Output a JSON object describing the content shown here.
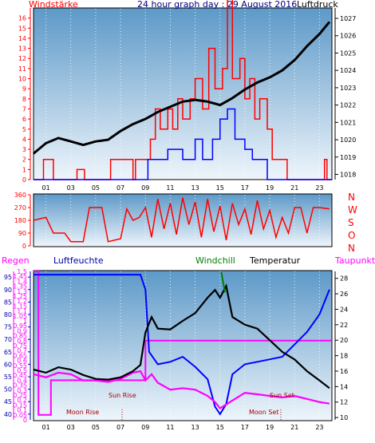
{
  "title": "24 hour graph day : 29 August 2016",
  "colors": {
    "bg": "#ffffff",
    "plot_top": "#5d99c8",
    "plot_bottom": "#eef5fb",
    "red": "#ff0000",
    "blue": "#0000ff",
    "black": "#000000",
    "magenta": "#ff00ff",
    "green": "#008000",
    "darkred": "#aa0000"
  },
  "hours_labels": [
    "01",
    "03",
    "05",
    "07",
    "09",
    "11",
    "13",
    "15",
    "17",
    "19",
    "21",
    "23"
  ],
  "chart_data": [
    {
      "type": "line",
      "name": "wind-pressure",
      "left_label": "Windstärke",
      "right_label": "Luftdruck",
      "left_ticks": [
        "0",
        "1",
        "2",
        "3",
        "4",
        "5",
        "6",
        "7",
        "8",
        "9",
        "10",
        "11",
        "12",
        "13",
        "14",
        "15",
        "16"
      ],
      "right_ticks": [
        "1018",
        "1019",
        "1020",
        "1021",
        "1022",
        "1023",
        "1024",
        "1025",
        "1026",
        "1027"
      ],
      "left_range": [
        0,
        17
      ],
      "right_range": [
        1017.7,
        1027.6
      ],
      "x_range": [
        0,
        24
      ],
      "pressure": [
        [
          0,
          1019.2
        ],
        [
          1,
          1019.8
        ],
        [
          2,
          1020.1
        ],
        [
          3,
          1019.9
        ],
        [
          4,
          1019.7
        ],
        [
          5,
          1019.9
        ],
        [
          6,
          1020.0
        ],
        [
          7,
          1020.5
        ],
        [
          8,
          1020.9
        ],
        [
          9,
          1021.2
        ],
        [
          10,
          1021.6
        ],
        [
          11,
          1021.9
        ],
        [
          12,
          1022.2
        ],
        [
          13,
          1022.3
        ],
        [
          14,
          1022.2
        ],
        [
          15,
          1022.0
        ],
        [
          16,
          1022.4
        ],
        [
          17,
          1022.9
        ],
        [
          18,
          1023.3
        ],
        [
          19,
          1023.6
        ],
        [
          20,
          1024.0
        ],
        [
          21,
          1024.6
        ],
        [
          22,
          1025.4
        ],
        [
          23,
          1026.1
        ],
        [
          23.8,
          1026.8
        ]
      ],
      "wind_envelope": [
        [
          0,
          0
        ],
        [
          0.6,
          0
        ],
        [
          0.8,
          2
        ],
        [
          1.4,
          2
        ],
        [
          1.6,
          0
        ],
        [
          3.3,
          0
        ],
        [
          3.5,
          1
        ],
        [
          3.9,
          1
        ],
        [
          4.1,
          0
        ],
        [
          6.0,
          0
        ],
        [
          6.2,
          2
        ],
        [
          7.8,
          2
        ],
        [
          8.0,
          0
        ],
        [
          8.2,
          2
        ],
        [
          9.2,
          2
        ],
        [
          9.4,
          4
        ],
        [
          9.8,
          7
        ],
        [
          10.2,
          5
        ],
        [
          10.8,
          7
        ],
        [
          11.2,
          5
        ],
        [
          11.6,
          8
        ],
        [
          12.0,
          6
        ],
        [
          12.6,
          8
        ],
        [
          13.0,
          10
        ],
        [
          13.6,
          7
        ],
        [
          14.1,
          13
        ],
        [
          14.6,
          9
        ],
        [
          15.2,
          11
        ],
        [
          15.6,
          18
        ],
        [
          16.0,
          10
        ],
        [
          16.6,
          12
        ],
        [
          17.0,
          8
        ],
        [
          17.4,
          10
        ],
        [
          17.8,
          6
        ],
        [
          18.2,
          8
        ],
        [
          18.8,
          5
        ],
        [
          19.2,
          2
        ],
        [
          20.2,
          2
        ],
        [
          20.4,
          0
        ],
        [
          23.2,
          0
        ],
        [
          23.4,
          2
        ],
        [
          23.6,
          0
        ],
        [
          24,
          0
        ]
      ],
      "gust_envelope": [
        [
          0,
          0
        ],
        [
          9.0,
          0
        ],
        [
          9.2,
          2
        ],
        [
          10.6,
          2
        ],
        [
          10.8,
          3
        ],
        [
          12.0,
          2
        ],
        [
          13.0,
          4
        ],
        [
          13.6,
          2
        ],
        [
          14.4,
          4
        ],
        [
          15.0,
          6
        ],
        [
          15.6,
          7
        ],
        [
          16.2,
          4
        ],
        [
          17.0,
          3
        ],
        [
          17.6,
          2
        ],
        [
          18.6,
          2
        ],
        [
          18.8,
          0
        ],
        [
          24,
          0
        ]
      ]
    },
    {
      "type": "line",
      "name": "wind-direction",
      "left_ticks": [
        "0",
        "90",
        "180",
        "270",
        "360"
      ],
      "right_labels": [
        "N",
        "W",
        "S",
        "O",
        "N"
      ],
      "y_range": [
        0,
        360
      ],
      "x_range": [
        0,
        24
      ],
      "direction": [
        [
          0,
          180
        ],
        [
          1,
          200
        ],
        [
          1.6,
          90
        ],
        [
          2.5,
          90
        ],
        [
          3,
          30
        ],
        [
          4,
          30
        ],
        [
          4.5,
          270
        ],
        [
          5.5,
          270
        ],
        [
          6,
          30
        ],
        [
          7,
          50
        ],
        [
          7.5,
          260
        ],
        [
          8,
          180
        ],
        [
          8.5,
          200
        ],
        [
          9,
          270
        ],
        [
          9.5,
          60
        ],
        [
          10,
          330
        ],
        [
          10.5,
          120
        ],
        [
          11,
          300
        ],
        [
          11.5,
          80
        ],
        [
          12,
          340
        ],
        [
          12.5,
          150
        ],
        [
          13,
          310
        ],
        [
          13.5,
          60
        ],
        [
          14,
          330
        ],
        [
          14.5,
          100
        ],
        [
          15,
          280
        ],
        [
          15.5,
          40
        ],
        [
          16,
          300
        ],
        [
          16.5,
          150
        ],
        [
          17,
          260
        ],
        [
          17.5,
          80
        ],
        [
          18,
          320
        ],
        [
          18.5,
          120
        ],
        [
          19,
          250
        ],
        [
          19.5,
          60
        ],
        [
          20,
          200
        ],
        [
          20.5,
          90
        ],
        [
          21,
          270
        ],
        [
          21.5,
          270
        ],
        [
          22,
          90
        ],
        [
          22.5,
          270
        ],
        [
          23,
          270
        ],
        [
          23.8,
          260
        ]
      ]
    },
    {
      "type": "line",
      "name": "rain-humidity-temperature",
      "labels": {
        "rain": "Regen",
        "humidity": "Luftfeuchte",
        "windchill": "Windchill",
        "temperature": "Temperatur",
        "dewpoint": "Taupunkt"
      },
      "rain_ticks": [
        "0",
        "0.05",
        "0.1",
        "0.15",
        "0.2",
        "0.25",
        "0.3",
        "0.35",
        "0.4",
        "0.45",
        "0.5",
        "0.55",
        "0.6",
        "0.65",
        "0.7",
        "0.75",
        "0.8",
        "0.85",
        "0.9",
        "0.95",
        "1",
        "1.05",
        "1.1",
        "1.15",
        "1.2",
        "1.25",
        "1.3",
        "1.35",
        "1.4",
        "1.45",
        "1.5"
      ],
      "humidity_ticks": [
        "40",
        "45",
        "50",
        "55",
        "60",
        "65",
        "70",
        "75",
        "80",
        "85",
        "90",
        "95"
      ],
      "temp_ticks": [
        "10",
        "12",
        "14",
        "16",
        "18",
        "20",
        "22",
        "24",
        "26",
        "28"
      ],
      "temp_range": [
        9.7,
        28.9
      ],
      "x_range": [
        0,
        24
      ],
      "temperature": [
        [
          0,
          16.2
        ],
        [
          1,
          15.8
        ],
        [
          2,
          16.5
        ],
        [
          3,
          16.2
        ],
        [
          4,
          15.5
        ],
        [
          5,
          15.0
        ],
        [
          6,
          14.9
        ],
        [
          7,
          15.2
        ],
        [
          8,
          16.0
        ],
        [
          8.6,
          16.8
        ],
        [
          9,
          21.0
        ],
        [
          9.5,
          23.0
        ],
        [
          10,
          21.5
        ],
        [
          11,
          21.4
        ],
        [
          12,
          22.5
        ],
        [
          13,
          23.5
        ],
        [
          14,
          25.5
        ],
        [
          14.6,
          26.5
        ],
        [
          15,
          25.5
        ],
        [
          15.5,
          27.0
        ],
        [
          16,
          23.0
        ],
        [
          17,
          22.0
        ],
        [
          18,
          21.5
        ],
        [
          19,
          20.0
        ],
        [
          20,
          18.5
        ],
        [
          21,
          17.5
        ],
        [
          22,
          16.0
        ],
        [
          23,
          14.8
        ],
        [
          23.8,
          13.8
        ]
      ],
      "windchill": [
        [
          15.1,
          28.8
        ],
        [
          15.4,
          26.2
        ]
      ],
      "dewpoint": [
        [
          0,
          15.6
        ],
        [
          1,
          15.2
        ],
        [
          2,
          15.8
        ],
        [
          3,
          15.6
        ],
        [
          4,
          14.8
        ],
        [
          5,
          14.8
        ],
        [
          6,
          14.6
        ],
        [
          7,
          15.0
        ],
        [
          8,
          15.8
        ],
        [
          8.6,
          16.0
        ],
        [
          9,
          14.8
        ],
        [
          9.5,
          15.6
        ],
        [
          10,
          14.5
        ],
        [
          11,
          13.6
        ],
        [
          12,
          13.8
        ],
        [
          13,
          13.6
        ],
        [
          14,
          12.8
        ],
        [
          14.6,
          12.0
        ],
        [
          15,
          11.2
        ],
        [
          15.6,
          11.8
        ],
        [
          16,
          12.2
        ],
        [
          17,
          13.2
        ],
        [
          18,
          13.0
        ],
        [
          19,
          12.8
        ],
        [
          20,
          12.6
        ],
        [
          21,
          12.8
        ],
        [
          22,
          12.4
        ],
        [
          23,
          12.0
        ],
        [
          23.8,
          11.8
        ]
      ],
      "humidity": [
        [
          0,
          96
        ],
        [
          0.5,
          96
        ],
        [
          1,
          96
        ],
        [
          8.6,
          96
        ],
        [
          9,
          90
        ],
        [
          9.3,
          65
        ],
        [
          10,
          60
        ],
        [
          11,
          61
        ],
        [
          12,
          63
        ],
        [
          13,
          59
        ],
        [
          14,
          54
        ],
        [
          14.6,
          43
        ],
        [
          15,
          40
        ],
        [
          15.5,
          44
        ],
        [
          16,
          56
        ],
        [
          17,
          60
        ],
        [
          18,
          61
        ],
        [
          19,
          62
        ],
        [
          20,
          63
        ],
        [
          21,
          68
        ],
        [
          22,
          73
        ],
        [
          23,
          80
        ],
        [
          23.8,
          90
        ]
      ],
      "rain": [
        [
          0,
          1.5
        ],
        [
          0.3,
          1.5
        ],
        [
          0.4,
          0.05
        ],
        [
          1.3,
          0.05
        ],
        [
          1.4,
          0.4
        ],
        [
          8.9,
          0.4
        ],
        [
          9.0,
          0.8
        ],
        [
          24,
          0.8
        ]
      ],
      "annotations": {
        "moon_rise": "Moon Rise",
        "sun_rise": "Sun Rise",
        "sun_set": "Sun Set",
        "moon_set": "Moon Set"
      }
    }
  ]
}
